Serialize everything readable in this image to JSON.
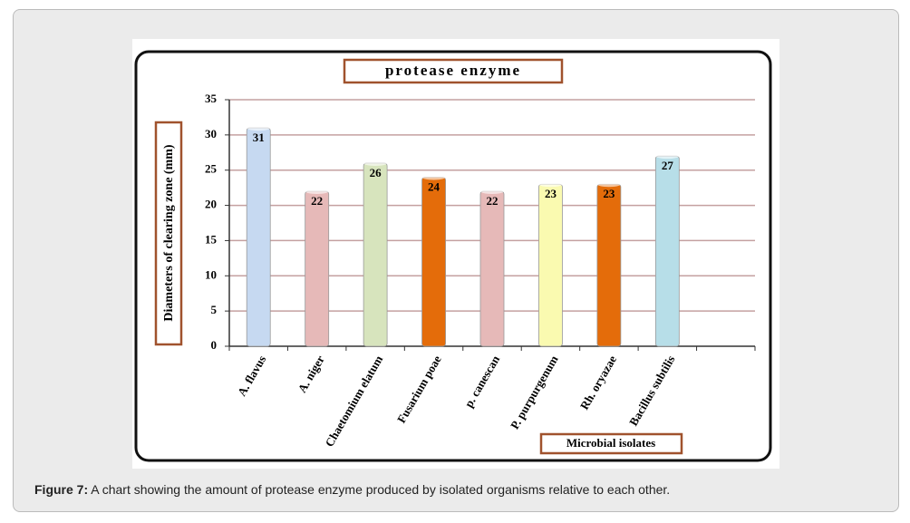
{
  "chart_data": {
    "type": "bar",
    "title": "protease enzyme",
    "y_label": "Diameters of clearing zone (mm)",
    "x_label": "Microbial  isolates",
    "categories": [
      "A. flavus",
      "A. niger",
      "Chaetomium elatum",
      "Fusarium poae",
      "p. canescan",
      "P. purpurgenum",
      "Rh. oryazae",
      "Bacillus subtilis",
      null
    ],
    "values": [
      31,
      22,
      26,
      24,
      22,
      23,
      23,
      27,
      null
    ],
    "colors": [
      "#c6d9f1",
      "#e6b9b8",
      "#d7e4bd",
      "#e46c0a",
      "#e6b9b8",
      "#fafab0",
      "#e46c0a",
      "#b7dee8",
      null
    ],
    "ylim": [
      0,
      35
    ],
    "yticks": [
      0,
      5,
      10,
      15,
      20,
      25,
      30,
      35
    ],
    "grid": true
  },
  "caption": {
    "label": "Figure 7:",
    "text": "A chart showing the amount of protease enzyme produced by isolated organisms relative to each other."
  }
}
